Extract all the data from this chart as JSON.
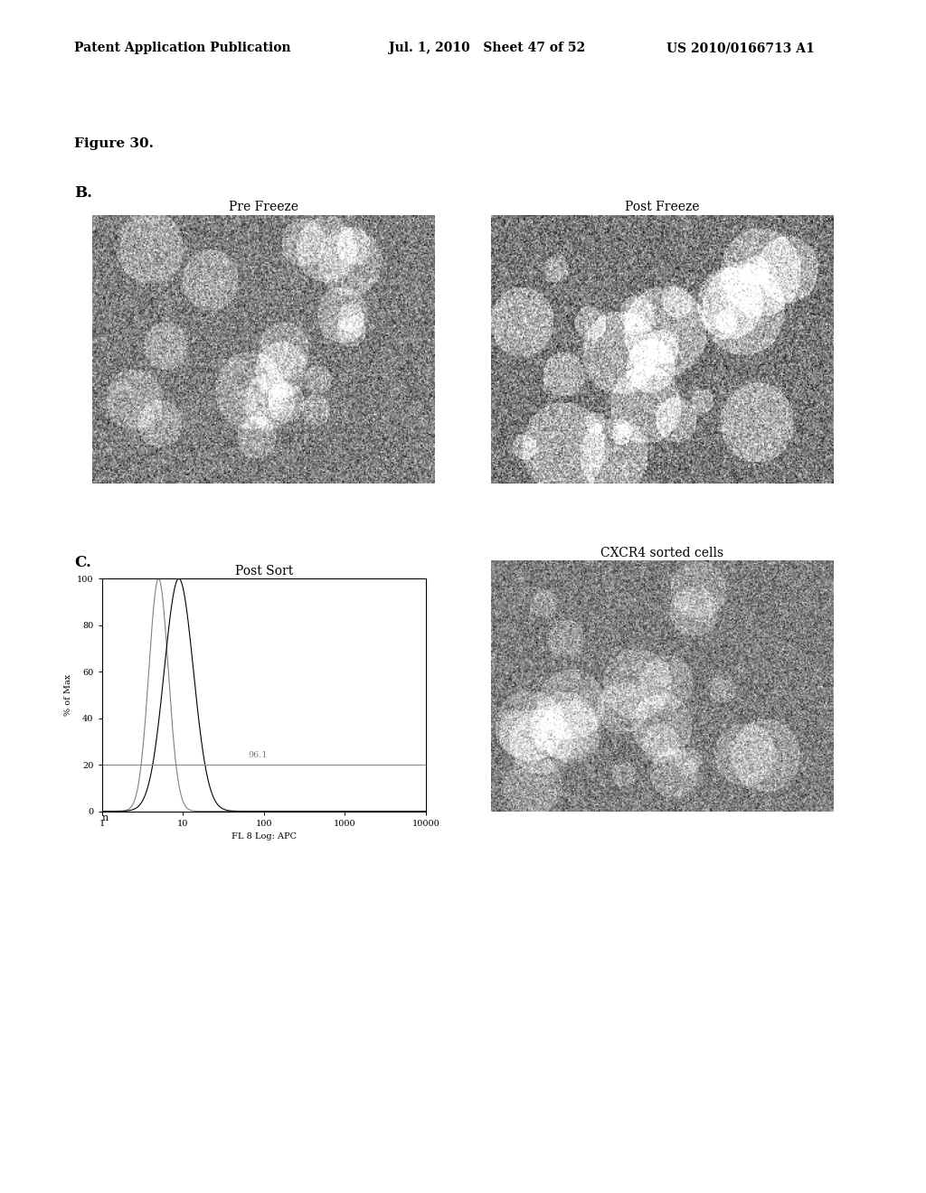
{
  "bg_color": "#ffffff",
  "header_left": "Patent Application Publication",
  "header_mid": "Jul. 1, 2010   Sheet 47 of 52",
  "header_right": "US 2010/0166713 A1",
  "figure_label": "Figure 30.",
  "panel_B_label": "B.",
  "panel_C_label": "C.",
  "pre_freeze_label": "Pre Freeze",
  "post_freeze_label": "Post Freeze",
  "post_sort_label": "Post Sort",
  "cxcr4_label": "CXCR4 sorted cells",
  "flow_annotation": "96.1",
  "flow_xlabel": "FL 8 Log: APC",
  "flow_ylabel": "% of Max",
  "flow_yticks": [
    0,
    20,
    40,
    60,
    80,
    100
  ],
  "flow_xtick_labels": [
    "1",
    "10",
    "100",
    "1000",
    "10000"
  ],
  "footnote": "n"
}
